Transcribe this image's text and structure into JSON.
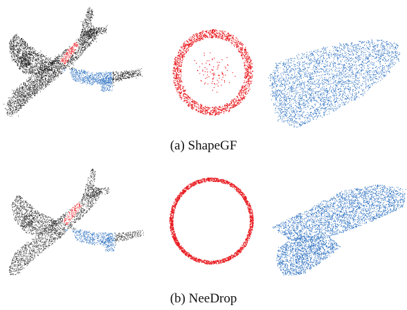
{
  "figure": {
    "panels": [
      {
        "id": "a",
        "caption": "(a) ShapeGF",
        "colors": {
          "airplane": "#1e1e1e",
          "ring": "#e8191e",
          "surface": "#2a6fc0"
        },
        "quality": "noisy"
      },
      {
        "id": "b",
        "caption": "(b) NeeDrop",
        "colors": {
          "airplane": "#2e2e2e",
          "ring": "#e8191e",
          "surface": "#2a6fc0"
        },
        "quality": "clean"
      }
    ]
  }
}
